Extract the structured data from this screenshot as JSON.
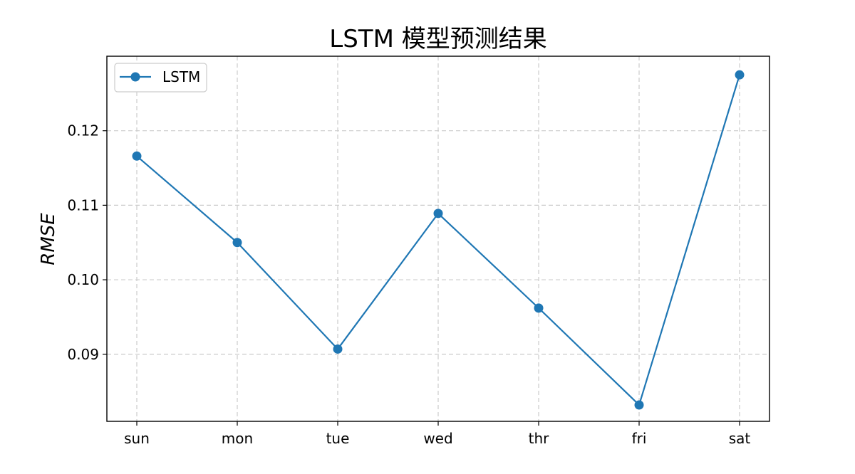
{
  "chart_data": {
    "type": "line",
    "title": "LSTM 模型预测结果",
    "xlabel": "",
    "ylabel": "RMSE",
    "categories": [
      "sun",
      "mon",
      "tue",
      "wed",
      "thr",
      "fri",
      "sat"
    ],
    "series": [
      {
        "name": "LSTM",
        "values": [
          0.1166,
          0.105,
          0.0907,
          0.1089,
          0.0962,
          0.0832,
          0.1275
        ],
        "color": "#1f77b4",
        "marker": "circle"
      }
    ],
    "yticks": [
      0.09,
      0.1,
      0.11,
      0.12
    ],
    "ytick_labels": [
      "0.09",
      "0.10",
      "0.11",
      "0.12"
    ],
    "ylim": [
      0.081,
      0.13
    ],
    "grid": true,
    "legend": "top-left"
  }
}
